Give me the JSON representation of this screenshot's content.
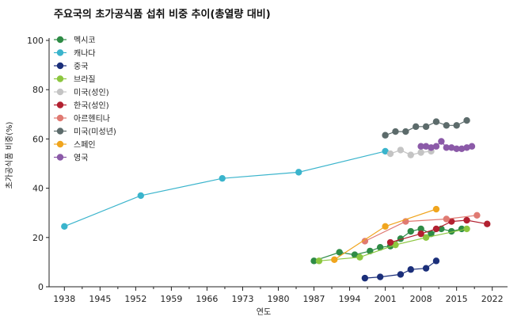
{
  "chart_data": {
    "type": "line",
    "title": "주요국의 초가공식품 섭취 비중 추이(총열량 대비)",
    "xlabel": "연도",
    "ylabel": "초가공식품 비중(%)",
    "xlim": [
      1935,
      2025
    ],
    "ylim": [
      0,
      100
    ],
    "xticks": [
      1938,
      1945,
      1952,
      1959,
      1966,
      1973,
      1980,
      1987,
      1994,
      2001,
      2008,
      2015,
      2022
    ],
    "yticks": [
      0,
      20,
      40,
      60,
      80,
      100
    ],
    "grid": false,
    "legend_position": "top-left",
    "series": [
      {
        "name": "멕시코",
        "color": "#2e8b45",
        "x": [
          1987,
          1992,
          1995,
          1998,
          2000,
          2002,
          2004,
          2006,
          2008,
          2010,
          2012,
          2014,
          2016
        ],
        "y": [
          10.5,
          14,
          13,
          14.5,
          16,
          16.5,
          19.5,
          22.5,
          23.5,
          21.5,
          23.5,
          22.5,
          23.5
        ]
      },
      {
        "name": "캐나다",
        "color": "#3ab4cc",
        "x": [
          1938,
          1953,
          1969,
          1984,
          2001
        ],
        "y": [
          24.5,
          37,
          44,
          46.5,
          55
        ]
      },
      {
        "name": "중국",
        "color": "#1b2f7a",
        "x": [
          1997,
          2000,
          2004,
          2006,
          2009,
          2011
        ],
        "y": [
          3.5,
          4,
          5,
          7,
          7.5,
          10.5
        ]
      },
      {
        "name": "브라질",
        "color": "#8cc63f",
        "x": [
          1988,
          1996,
          2003,
          2009,
          2017
        ],
        "y": [
          10.5,
          12,
          17,
          20,
          23.5
        ]
      },
      {
        "name": "미국(성인)",
        "color": "#c4c4c4",
        "x": [
          2002,
          2004,
          2006,
          2008,
          2010
        ],
        "y": [
          54,
          55.5,
          53.5,
          54.5,
          55
        ]
      },
      {
        "name": "한국(성인)",
        "color": "#b22030",
        "x": [
          2002,
          2008,
          2011,
          2014,
          2017,
          2021
        ],
        "y": [
          18,
          21.5,
          23.5,
          26.5,
          27,
          25.5
        ]
      },
      {
        "name": "아르헨티나",
        "color": "#e07a72",
        "x": [
          1997,
          2005,
          2013,
          2019
        ],
        "y": [
          18.5,
          26.5,
          27.5,
          29
        ]
      },
      {
        "name": "미국(미성년)",
        "color": "#5c6b6b",
        "x": [
          2001,
          2003,
          2005,
          2007,
          2009,
          2011,
          2013,
          2015,
          2017
        ],
        "y": [
          61.5,
          63,
          63,
          65,
          65,
          67,
          65.5,
          65.5,
          67.5
        ]
      },
      {
        "name": "스페인",
        "color": "#f0a51e",
        "x": [
          1991,
          2001,
          2011
        ],
        "y": [
          11,
          24.5,
          31.5
        ]
      },
      {
        "name": "영국",
        "color": "#8b5aa8",
        "x": [
          2008,
          2009,
          2010,
          2011,
          2012,
          2013,
          2014,
          2015,
          2016,
          2017,
          2018
        ],
        "y": [
          57,
          57,
          56.5,
          57,
          59,
          56.5,
          56.5,
          56,
          56,
          56.5,
          57
        ]
      }
    ]
  }
}
